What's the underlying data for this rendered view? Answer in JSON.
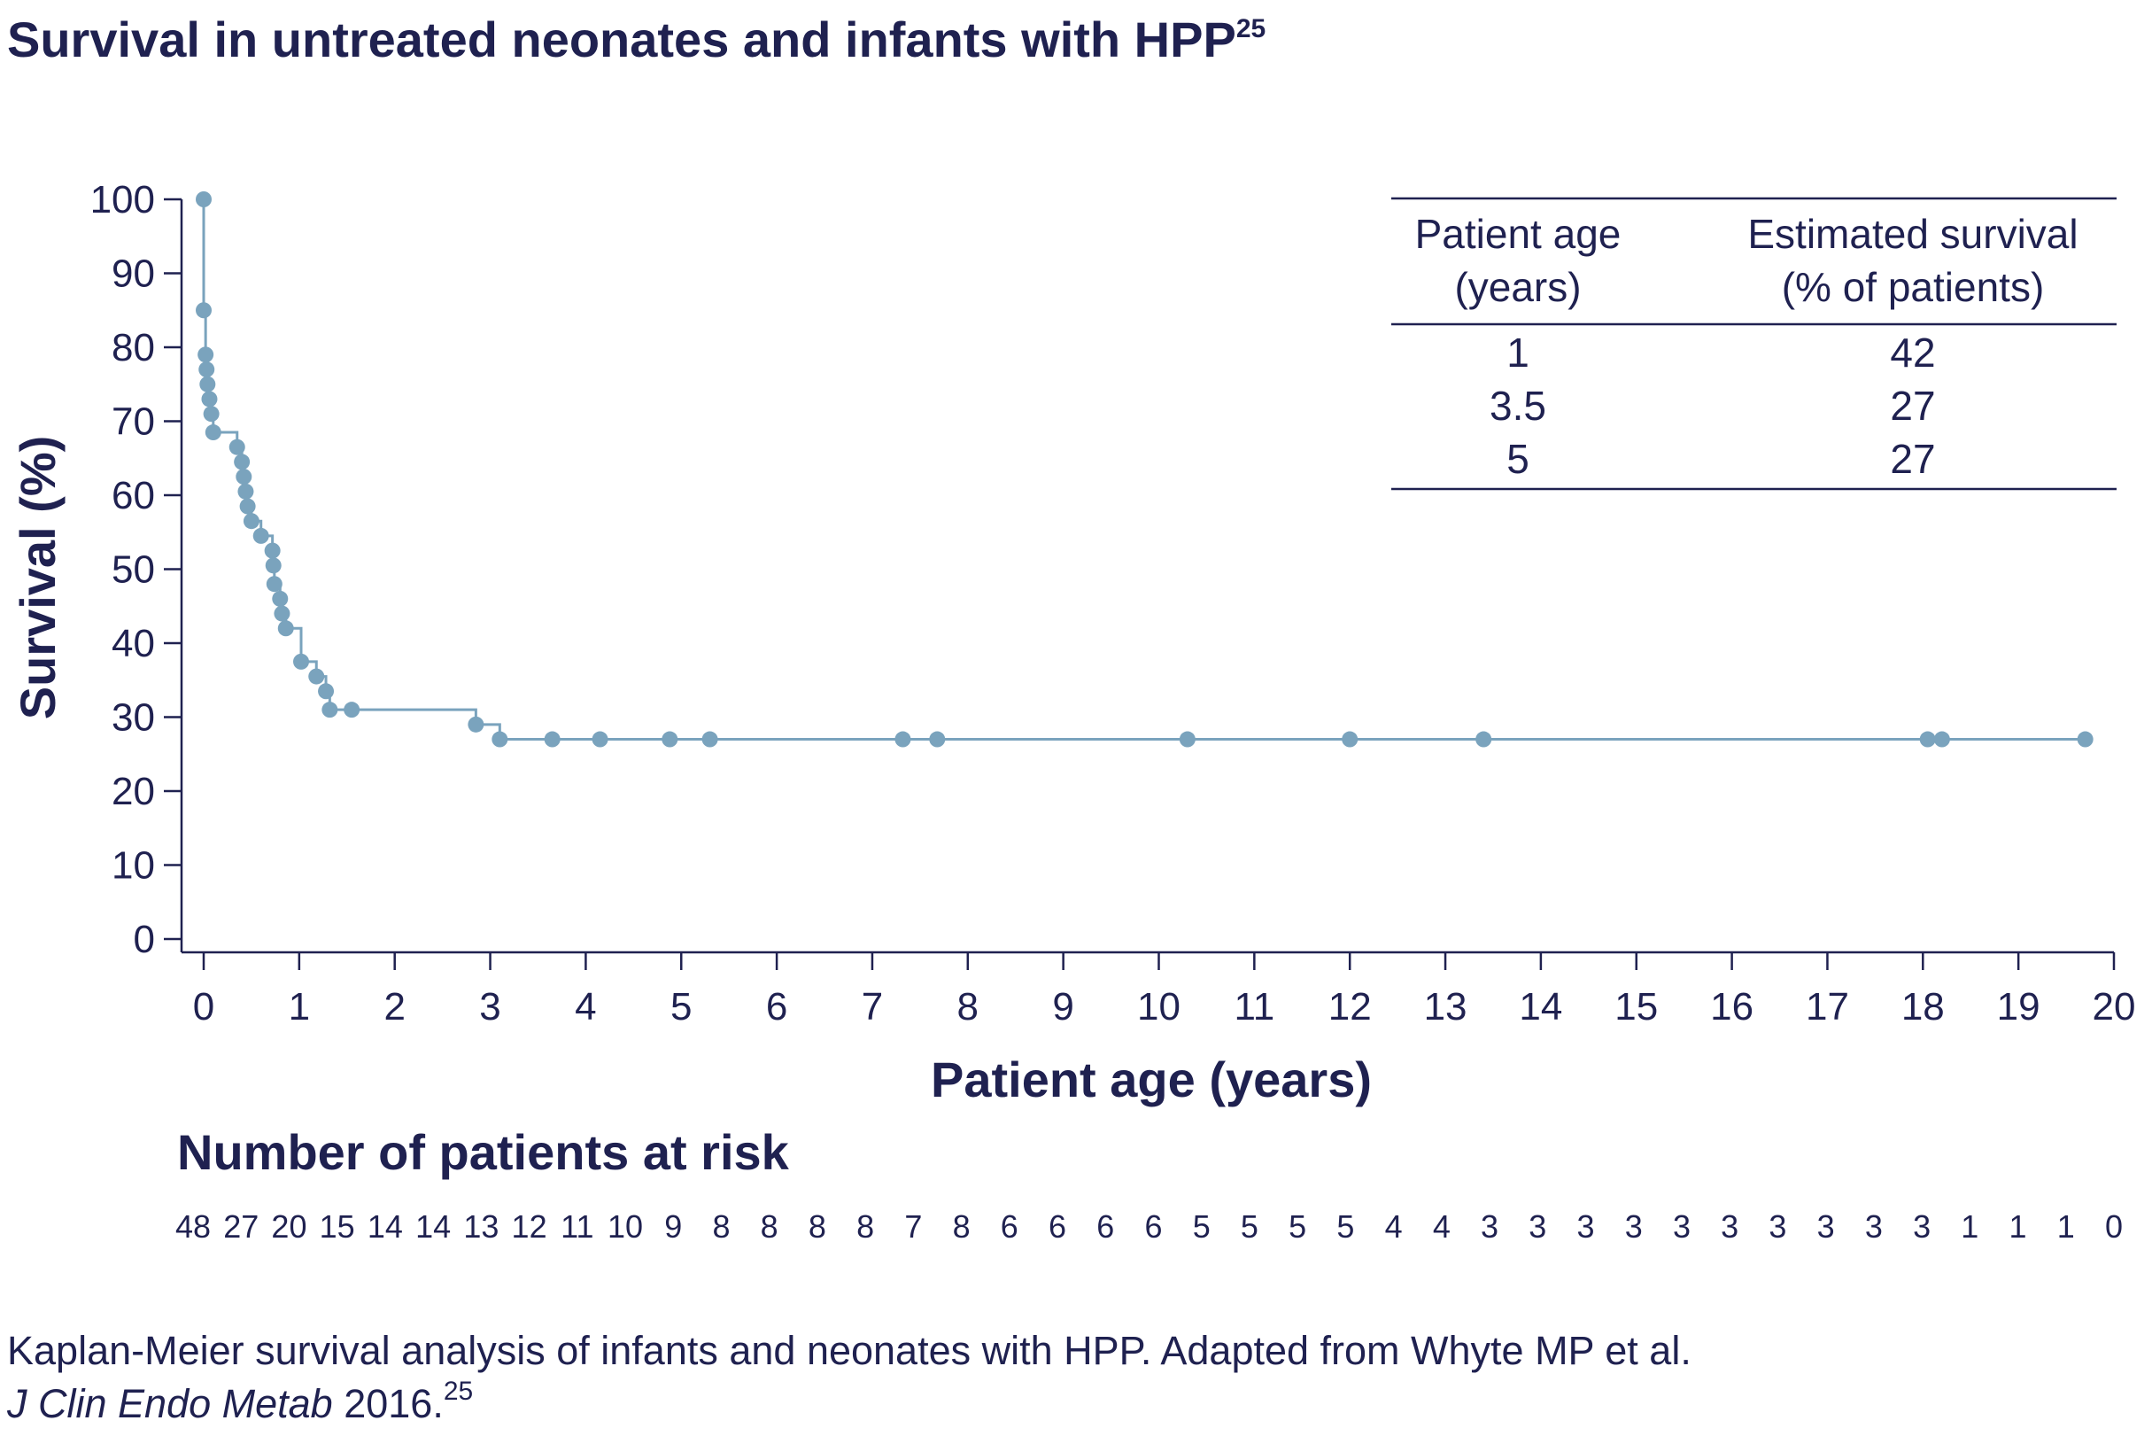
{
  "title": "Survival in untreated neonates and infants with HPP",
  "title_sup": "25",
  "chart_data": {
    "type": "line",
    "step": true,
    "xlabel": "Patient age (years)",
    "ylabel": "Survival (%)",
    "xlim": [
      0,
      20
    ],
    "ylim": [
      0,
      100
    ],
    "x_ticks": [
      "0",
      "1",
      "2",
      "3",
      "4",
      "5",
      "6",
      "7",
      "8",
      "9",
      "10",
      "11",
      "12",
      "13",
      "14",
      "15",
      "16",
      "17",
      "18",
      "19",
      "20"
    ],
    "y_ticks": [
      "0",
      "10",
      "20",
      "30",
      "40",
      "50",
      "60",
      "70",
      "80",
      "90",
      "100"
    ],
    "line_color": "#7aa3bd",
    "steps": [
      [
        0,
        100
      ],
      [
        0,
        85
      ],
      [
        0.02,
        79
      ],
      [
        0.03,
        77
      ],
      [
        0.04,
        75
      ],
      [
        0.06,
        73
      ],
      [
        0.08,
        71
      ],
      [
        0.1,
        68.5
      ],
      [
        0.35,
        66.5
      ],
      [
        0.4,
        64.5
      ],
      [
        0.42,
        62.5
      ],
      [
        0.44,
        60.5
      ],
      [
        0.46,
        58.5
      ],
      [
        0.5,
        56.5
      ],
      [
        0.6,
        54.5
      ],
      [
        0.72,
        52.5
      ],
      [
        0.73,
        50.5
      ],
      [
        0.74,
        48
      ],
      [
        0.8,
        46
      ],
      [
        0.82,
        44
      ],
      [
        0.86,
        42
      ],
      [
        1.02,
        37.5
      ],
      [
        1.18,
        35.5
      ],
      [
        1.28,
        33.5
      ],
      [
        1.32,
        31
      ],
      [
        2.85,
        29
      ],
      [
        3.1,
        27
      ]
    ],
    "censored_points": [
      [
        0,
        100
      ],
      [
        0,
        85
      ],
      [
        0.02,
        79
      ],
      [
        0.03,
        77
      ],
      [
        0.04,
        75
      ],
      [
        0.06,
        73
      ],
      [
        0.08,
        71
      ],
      [
        0.1,
        68.5
      ],
      [
        0.35,
        66.5
      ],
      [
        0.4,
        64.5
      ],
      [
        0.42,
        62.5
      ],
      [
        0.44,
        60.5
      ],
      [
        0.46,
        58.5
      ],
      [
        0.5,
        56.5
      ],
      [
        0.6,
        54.5
      ],
      [
        0.72,
        52.5
      ],
      [
        0.73,
        50.5
      ],
      [
        0.74,
        48
      ],
      [
        0.8,
        46
      ],
      [
        0.82,
        44
      ],
      [
        0.86,
        42
      ],
      [
        1.02,
        37.5
      ],
      [
        1.18,
        35.5
      ],
      [
        1.28,
        33.5
      ],
      [
        1.32,
        31
      ],
      [
        1.55,
        31
      ],
      [
        2.85,
        29
      ],
      [
        3.1,
        27
      ],
      [
        3.65,
        27
      ],
      [
        4.15,
        27
      ],
      [
        4.88,
        27
      ],
      [
        5.3,
        27
      ],
      [
        7.32,
        27
      ],
      [
        7.68,
        27
      ],
      [
        10.3,
        27
      ],
      [
        12.0,
        27
      ],
      [
        13.4,
        27
      ],
      [
        18.05,
        27
      ],
      [
        18.2,
        27
      ],
      [
        19.7,
        27
      ]
    ],
    "end_x": 19.7
  },
  "survival_table": {
    "col1_header_line1": "Patient age",
    "col1_header_line2": "(years)",
    "col2_header_line1": "Estimated survival",
    "col2_header_line2": "(% of patients)",
    "rows": [
      {
        "age": "1",
        "survival": "42"
      },
      {
        "age": "3.5",
        "survival": "27"
      },
      {
        "age": "5",
        "survival": "27"
      }
    ]
  },
  "at_risk": {
    "title": "Number of patients at risk",
    "numbers": [
      "48",
      "27",
      "20",
      "15",
      "14",
      "14",
      "13",
      "12",
      "11",
      "10",
      "9",
      "8",
      "8",
      "8",
      "8",
      "7",
      "8",
      "6",
      "6",
      "6",
      "6",
      "5",
      "5",
      "5",
      "5",
      "4",
      "4",
      "3",
      "3",
      "3",
      "3",
      "3",
      "3",
      "3",
      "3",
      "3",
      "3",
      "1",
      "1",
      "1",
      "0"
    ]
  },
  "caption": {
    "line1": "Kaplan-Meier survival analysis of infants and neonates with HPP. Adapted from Whyte MP et al.",
    "line2_italic": "J Clin Endo Metab",
    "line2_rest": " 2016.",
    "line2_sup": "25"
  }
}
